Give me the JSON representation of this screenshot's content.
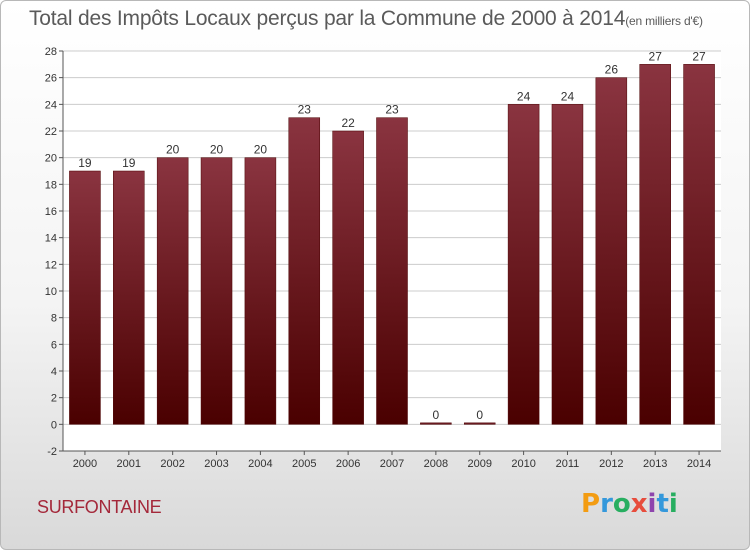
{
  "chart_data": {
    "type": "bar",
    "title": "Total des Impôts Locaux perçus par la Commune de 2000 à 2014",
    "title_unit": "(en milliers d'€)",
    "categories": [
      "2000",
      "2001",
      "2002",
      "2003",
      "2004",
      "2005",
      "2006",
      "2007",
      "2008",
      "2009",
      "2010",
      "2011",
      "2012",
      "2013",
      "2014"
    ],
    "values": [
      19,
      19,
      20,
      20,
      20,
      23,
      22,
      23,
      0,
      0,
      24,
      24,
      26,
      27,
      27
    ],
    "ylim": [
      -2,
      28
    ],
    "yticks": [
      -2,
      0,
      2,
      4,
      6,
      8,
      10,
      12,
      14,
      16,
      18,
      20,
      22,
      24,
      26,
      28
    ],
    "grid": true,
    "bar_color": "#7a2030"
  },
  "footer": {
    "commune": "SURFONTAINE",
    "logo": {
      "letters": [
        "P",
        "r",
        "o",
        "x",
        "i",
        "t",
        "i"
      ],
      "colors": [
        "#f39c12",
        "#3498db",
        "#27ae60",
        "#e74c3c",
        "#8e44ad",
        "#3498db",
        "#27ae60"
      ]
    }
  }
}
